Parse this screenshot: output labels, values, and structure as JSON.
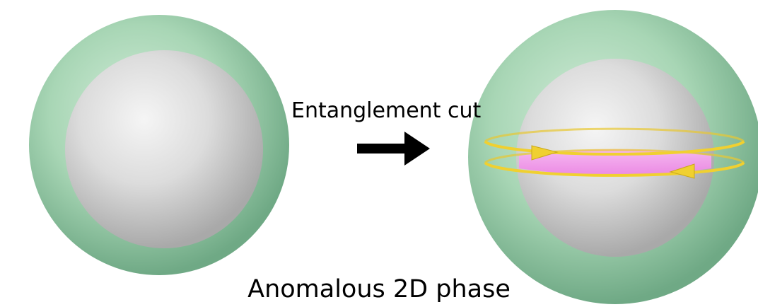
{
  "arrow_label": "Entanglement cut",
  "caption": "Anomalous 2D phase",
  "colors": {
    "outer_shell": "#a8d4b4",
    "inner_sphere": "#d9d9d9",
    "edge_band": "#f59ef0",
    "edge_ring": "#f0d030",
    "arrow": "#000000"
  }
}
